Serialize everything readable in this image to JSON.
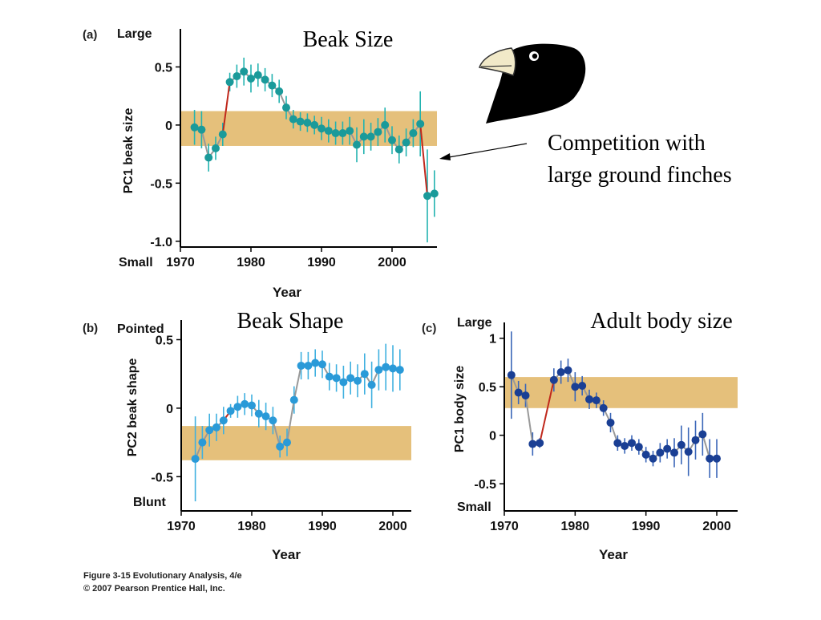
{
  "figure": {
    "caption_line1": "Figure 3-15  Evolutionary Analysis, 4/e",
    "caption_line2": "© 2007 Pearson Prentice Hall, Inc."
  },
  "annotation": {
    "line1": "Competition with",
    "line2": "large ground finches"
  },
  "colors": {
    "band": "#e5c07b",
    "connector": "#999999",
    "highlight": "#c0281c",
    "a_point": "#1a9a9a",
    "a_err": "#23b3b0",
    "b_point": "#2a9ad8",
    "b_err": "#3fb0e0",
    "c_point": "#1a3f94",
    "c_err": "#3a66b8"
  },
  "chart_data": [
    {
      "panel": "(a)",
      "type": "line",
      "title": "Beak Size",
      "ylabel": "PC1 beak size",
      "xlabel": "Year",
      "top_label": "Large",
      "bottom_label": "Small",
      "xlim": [
        1970,
        2006
      ],
      "ylim": [
        -1.05,
        0.8
      ],
      "xticks": [
        1970,
        1980,
        1990,
        2000
      ],
      "yticks": [
        0.5,
        0,
        -0.5,
        -1.0
      ],
      "ytick_labels": [
        "0.5",
        "0",
        "-0.5",
        "-1.0"
      ],
      "band": [
        -0.18,
        0.12
      ],
      "points": [
        {
          "x": 1972,
          "y": -0.02,
          "err": 0.15
        },
        {
          "x": 1973,
          "y": -0.04,
          "err": 0.16
        },
        {
          "x": 1974,
          "y": -0.28,
          "err": 0.12
        },
        {
          "x": 1975,
          "y": -0.2,
          "err": 0.1
        },
        {
          "x": 1976,
          "y": -0.08,
          "err": 0.1
        },
        {
          "x": 1977,
          "y": 0.37,
          "err": 0.08
        },
        {
          "x": 1978,
          "y": 0.42,
          "err": 0.1
        },
        {
          "x": 1979,
          "y": 0.46,
          "err": 0.12
        },
        {
          "x": 1980,
          "y": 0.4,
          "err": 0.12
        },
        {
          "x": 1981,
          "y": 0.43,
          "err": 0.1
        },
        {
          "x": 1982,
          "y": 0.39,
          "err": 0.1
        },
        {
          "x": 1983,
          "y": 0.34,
          "err": 0.1
        },
        {
          "x": 1984,
          "y": 0.29,
          "err": 0.1
        },
        {
          "x": 1985,
          "y": 0.15,
          "err": 0.1
        },
        {
          "x": 1986,
          "y": 0.05,
          "err": 0.08
        },
        {
          "x": 1987,
          "y": 0.03,
          "err": 0.08
        },
        {
          "x": 1988,
          "y": 0.02,
          "err": 0.08
        },
        {
          "x": 1989,
          "y": 0.0,
          "err": 0.08
        },
        {
          "x": 1990,
          "y": -0.03,
          "err": 0.1
        },
        {
          "x": 1991,
          "y": -0.05,
          "err": 0.1
        },
        {
          "x": 1992,
          "y": -0.07,
          "err": 0.1
        },
        {
          "x": 1993,
          "y": -0.07,
          "err": 0.1
        },
        {
          "x": 1994,
          "y": -0.05,
          "err": 0.12
        },
        {
          "x": 1995,
          "y": -0.17,
          "err": 0.15
        },
        {
          "x": 1996,
          "y": -0.1,
          "err": 0.15
        },
        {
          "x": 1997,
          "y": -0.1,
          "err": 0.12
        },
        {
          "x": 1998,
          "y": -0.06,
          "err": 0.12
        },
        {
          "x": 1999,
          "y": 0.0,
          "err": 0.15
        },
        {
          "x": 2000,
          "y": -0.13,
          "err": 0.12
        },
        {
          "x": 2001,
          "y": -0.21,
          "err": 0.12
        },
        {
          "x": 2002,
          "y": -0.15,
          "err": 0.12
        },
        {
          "x": 2003,
          "y": -0.07,
          "err": 0.12
        },
        {
          "x": 2004,
          "y": 0.01,
          "err": 0.28
        },
        {
          "x": 2005,
          "y": -0.61,
          "err": 0.4
        },
        {
          "x": 2006,
          "y": -0.59,
          "err": 0.2
        }
      ],
      "highlight_segments": [
        [
          1976,
          1977
        ],
        [
          2004,
          2005
        ]
      ]
    },
    {
      "panel": "(b)",
      "type": "line",
      "title": "Beak Shape",
      "ylabel": "PC2 beak shape",
      "xlabel": "Year",
      "top_label": "Pointed",
      "bottom_label": "Blunt",
      "xlim": [
        1970,
        2002.5
      ],
      "ylim": [
        -0.75,
        0.62
      ],
      "xticks": [
        1970,
        1980,
        1990,
        2000
      ],
      "yticks": [
        0.5,
        0,
        -0.5
      ],
      "ytick_labels": [
        "0.5",
        "0",
        "-0.5"
      ],
      "band": [
        -0.38,
        -0.13
      ],
      "points": [
        {
          "x": 1972,
          "y": -0.37,
          "err": 0.31
        },
        {
          "x": 1973,
          "y": -0.25,
          "err": 0.12
        },
        {
          "x": 1974,
          "y": -0.16,
          "err": 0.12
        },
        {
          "x": 1975,
          "y": -0.14,
          "err": 0.1
        },
        {
          "x": 1976,
          "y": -0.09,
          "err": 0.1
        },
        {
          "x": 1977,
          "y": -0.02,
          "err": 0.05
        },
        {
          "x": 1978,
          "y": 0.01,
          "err": 0.08
        },
        {
          "x": 1979,
          "y": 0.03,
          "err": 0.08
        },
        {
          "x": 1980,
          "y": 0.02,
          "err": 0.08
        },
        {
          "x": 1981,
          "y": -0.04,
          "err": 0.1
        },
        {
          "x": 1982,
          "y": -0.06,
          "err": 0.1
        },
        {
          "x": 1983,
          "y": -0.09,
          "err": 0.1
        },
        {
          "x": 1984,
          "y": -0.28,
          "err": 0.08
        },
        {
          "x": 1985,
          "y": -0.25,
          "err": 0.1
        },
        {
          "x": 1986,
          "y": 0.06,
          "err": 0.1
        },
        {
          "x": 1987,
          "y": 0.31,
          "err": 0.1
        },
        {
          "x": 1988,
          "y": 0.31,
          "err": 0.1
        },
        {
          "x": 1989,
          "y": 0.33,
          "err": 0.1
        },
        {
          "x": 1990,
          "y": 0.32,
          "err": 0.1
        },
        {
          "x": 1991,
          "y": 0.23,
          "err": 0.1
        },
        {
          "x": 1992,
          "y": 0.22,
          "err": 0.1
        },
        {
          "x": 1993,
          "y": 0.19,
          "err": 0.12
        },
        {
          "x": 1994,
          "y": 0.22,
          "err": 0.12
        },
        {
          "x": 1995,
          "y": 0.2,
          "err": 0.12
        },
        {
          "x": 1996,
          "y": 0.25,
          "err": 0.15
        },
        {
          "x": 1997,
          "y": 0.17,
          "err": 0.17
        },
        {
          "x": 1998,
          "y": 0.28,
          "err": 0.15
        },
        {
          "x": 1999,
          "y": 0.3,
          "err": 0.17
        },
        {
          "x": 2000,
          "y": 0.29,
          "err": 0.17
        },
        {
          "x": 2001,
          "y": 0.28,
          "err": 0.15
        }
      ],
      "highlight_segments": [
        [
          1976,
          1977
        ]
      ]
    },
    {
      "panel": "(c)",
      "type": "line",
      "title": "Adult body size",
      "ylabel": "PC1 body size",
      "xlabel": "Year",
      "top_label": "Large",
      "bottom_label": "Small",
      "xlim": [
        1970,
        2002.5
      ],
      "ylim": [
        -0.78,
        1.13
      ],
      "xticks": [
        1970,
        1980,
        1990,
        2000
      ],
      "yticks": [
        1,
        0.5,
        0,
        -0.5
      ],
      "ytick_labels": [
        "1",
        "0.5",
        "0",
        "-0.5"
      ],
      "band": [
        0.28,
        0.6
      ],
      "points": [
        {
          "x": 1971,
          "y": 0.62,
          "err": 0.45
        },
        {
          "x": 1972,
          "y": 0.44,
          "err": 0.12
        },
        {
          "x": 1973,
          "y": 0.41,
          "err": 0.12
        },
        {
          "x": 1974,
          "y": -0.09,
          "err": 0.12
        },
        {
          "x": 1975,
          "y": -0.08,
          "err": 0.05
        },
        {
          "x": 1977,
          "y": 0.57,
          "err": 0.12
        },
        {
          "x": 1978,
          "y": 0.65,
          "err": 0.12
        },
        {
          "x": 1979,
          "y": 0.67,
          "err": 0.12
        },
        {
          "x": 1980,
          "y": 0.5,
          "err": 0.15
        },
        {
          "x": 1981,
          "y": 0.51,
          "err": 0.1
        },
        {
          "x": 1982,
          "y": 0.37,
          "err": 0.1
        },
        {
          "x": 1983,
          "y": 0.36,
          "err": 0.08
        },
        {
          "x": 1984,
          "y": 0.28,
          "err": 0.08
        },
        {
          "x": 1985,
          "y": 0.13,
          "err": 0.1
        },
        {
          "x": 1986,
          "y": -0.08,
          "err": 0.08
        },
        {
          "x": 1987,
          "y": -0.11,
          "err": 0.08
        },
        {
          "x": 1988,
          "y": -0.08,
          "err": 0.08
        },
        {
          "x": 1989,
          "y": -0.12,
          "err": 0.08
        },
        {
          "x": 1990,
          "y": -0.2,
          "err": 0.08
        },
        {
          "x": 1991,
          "y": -0.24,
          "err": 0.08
        },
        {
          "x": 1992,
          "y": -0.18,
          "err": 0.1
        },
        {
          "x": 1993,
          "y": -0.14,
          "err": 0.1
        },
        {
          "x": 1994,
          "y": -0.18,
          "err": 0.15
        },
        {
          "x": 1995,
          "y": -0.1,
          "err": 0.2
        },
        {
          "x": 1996,
          "y": -0.17,
          "err": 0.25
        },
        {
          "x": 1997,
          "y": -0.05,
          "err": 0.2
        },
        {
          "x": 1998,
          "y": 0.01,
          "err": 0.22
        },
        {
          "x": 1999,
          "y": -0.24,
          "err": 0.2
        },
        {
          "x": 2000,
          "y": -0.24,
          "err": 0.2
        }
      ],
      "highlight_segments": [
        [
          1975,
          1977
        ]
      ]
    }
  ]
}
